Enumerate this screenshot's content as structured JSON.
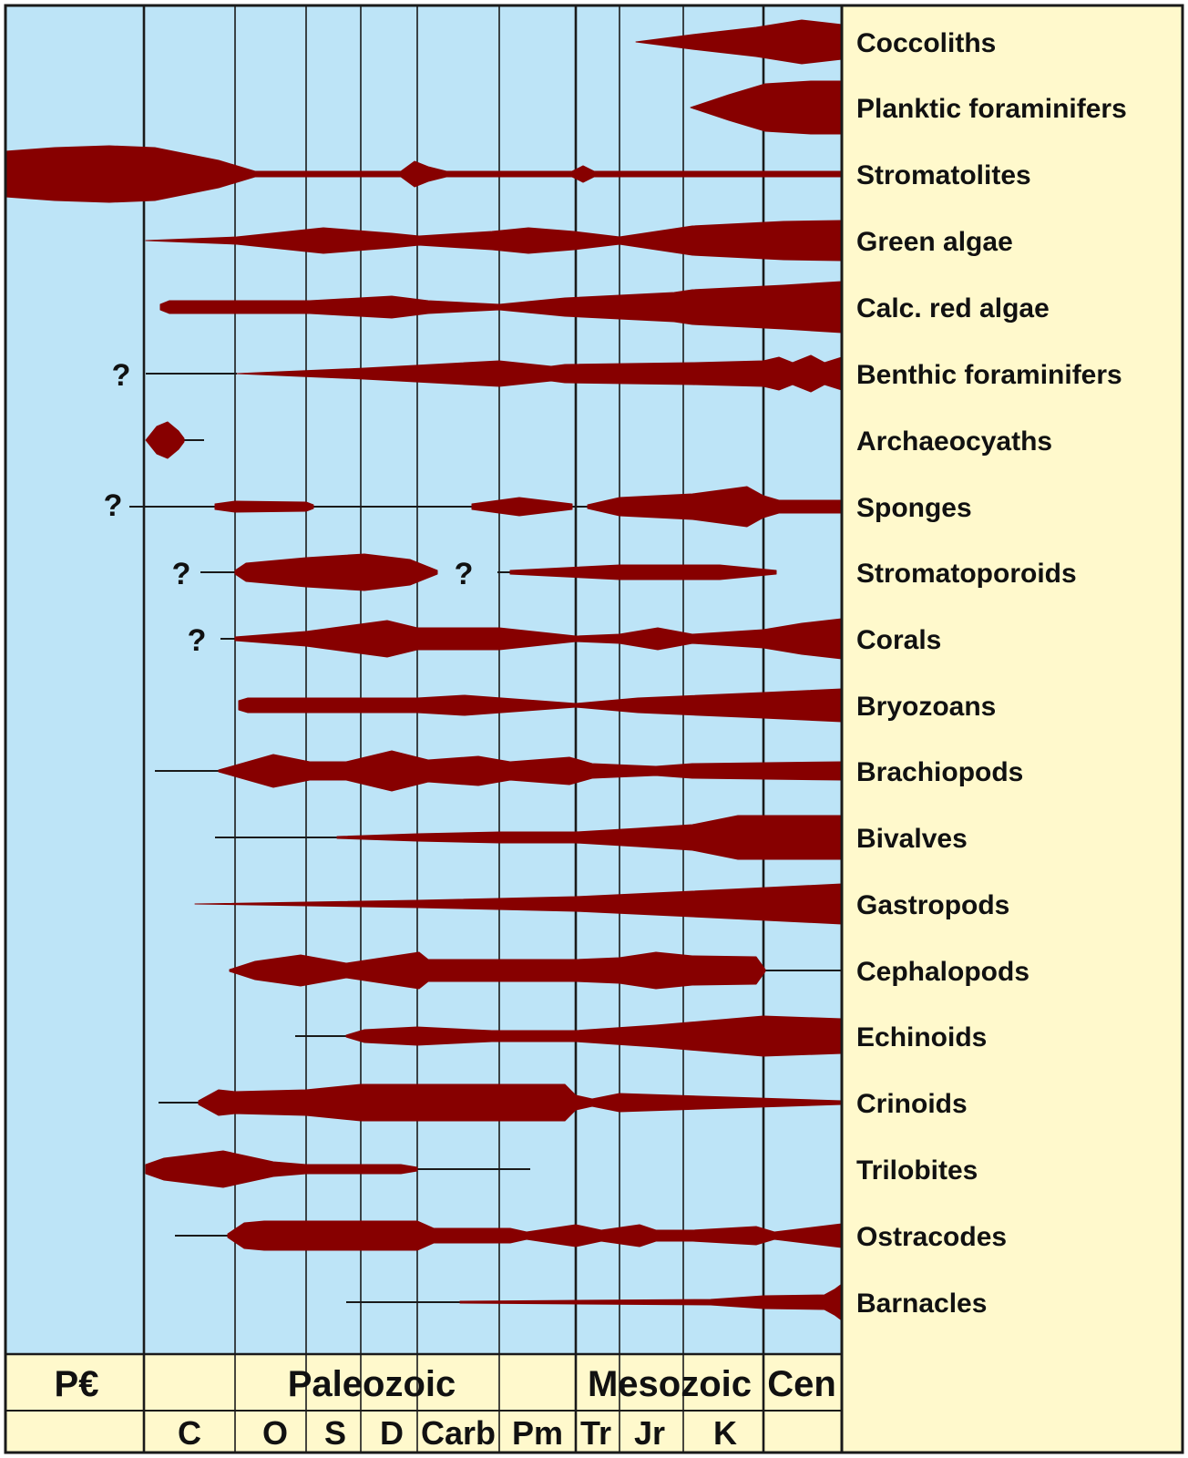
{
  "chart_data": {
    "type": "range-chart",
    "title": "",
    "xlabel": "",
    "ylabel": "",
    "colors": {
      "plot_bg": "#bde4f7",
      "label_bg": "#fff9cc",
      "spindle": "#870000",
      "line": "#1a1a1a"
    },
    "eras": [
      {
        "label": "P€",
        "from": "Precambrian",
        "to": "Cambrian"
      },
      {
        "label": "Paleozoic",
        "from": "Cambrian",
        "to": "Triassic"
      },
      {
        "label": "Mesozoic",
        "from": "Triassic",
        "to": "Cenozoic"
      },
      {
        "label": "Cen",
        "from": "Cenozoic",
        "to": "End"
      }
    ],
    "periods": [
      "C",
      "O",
      "S",
      "D",
      "Carb",
      "Pm",
      "Tr",
      "Jr",
      "K"
    ],
    "taxa": [
      {
        "name": "Coccoliths",
        "first_appearance": "Jr",
        "relative_abundance_at_present": "high"
      },
      {
        "name": "Planktic foraminifers",
        "first_appearance": "K",
        "relative_abundance_at_present": "high"
      },
      {
        "name": "Stromatolites",
        "first_appearance": "P€",
        "relative_abundance_at_present": "low"
      },
      {
        "name": "Green algae",
        "first_appearance": "C",
        "relative_abundance_at_present": "high"
      },
      {
        "name": "Calc. red algae",
        "first_appearance": "C",
        "relative_abundance_at_present": "high"
      },
      {
        "name": "Benthic foraminifers",
        "first_appearance": "C",
        "uncertain_origin": "?",
        "relative_abundance_at_present": "medium"
      },
      {
        "name": "Archaeocyaths",
        "first_appearance": "C",
        "last_appearance": "C"
      },
      {
        "name": "Sponges",
        "first_appearance": "P€",
        "uncertain_origin": "?",
        "relative_abundance_at_present": "medium"
      },
      {
        "name": "Stromatoporoids",
        "first_appearance": "C",
        "uncertain_origin": "?",
        "last_appearance": "K",
        "uncertain_gap": "?"
      },
      {
        "name": "Corals",
        "first_appearance": "C",
        "uncertain_origin": "?",
        "relative_abundance_at_present": "medium"
      },
      {
        "name": "Bryozoans",
        "first_appearance": "O",
        "relative_abundance_at_present": "medium"
      },
      {
        "name": "Brachiopods",
        "first_appearance": "C",
        "relative_abundance_at_present": "low"
      },
      {
        "name": "Bivalves",
        "first_appearance": "C",
        "relative_abundance_at_present": "high"
      },
      {
        "name": "Gastropods",
        "first_appearance": "C",
        "relative_abundance_at_present": "high"
      },
      {
        "name": "Cephalopods",
        "first_appearance": "C",
        "relative_abundance_at_present": "low"
      },
      {
        "name": "Echinoids",
        "first_appearance": "O",
        "relative_abundance_at_present": "high"
      },
      {
        "name": "Crinoids",
        "first_appearance": "C",
        "relative_abundance_at_present": "low"
      },
      {
        "name": "Trilobites",
        "first_appearance": "C",
        "last_appearance": "Pm"
      },
      {
        "name": "Ostracodes",
        "first_appearance": "C",
        "relative_abundance_at_present": "medium"
      },
      {
        "name": "Barnacles",
        "first_appearance": "S",
        "relative_abundance_at_present": "medium"
      }
    ],
    "question_marks": [
      {
        "taxon": "Benthic foraminifers",
        "text": "?"
      },
      {
        "taxon": "Sponges",
        "text": "?"
      },
      {
        "taxon": "Stromatoporoids",
        "text": "?"
      },
      {
        "taxon": "Stromatoporoids",
        "text": "?"
      },
      {
        "taxon": "Corals",
        "text": "?"
      }
    ]
  }
}
